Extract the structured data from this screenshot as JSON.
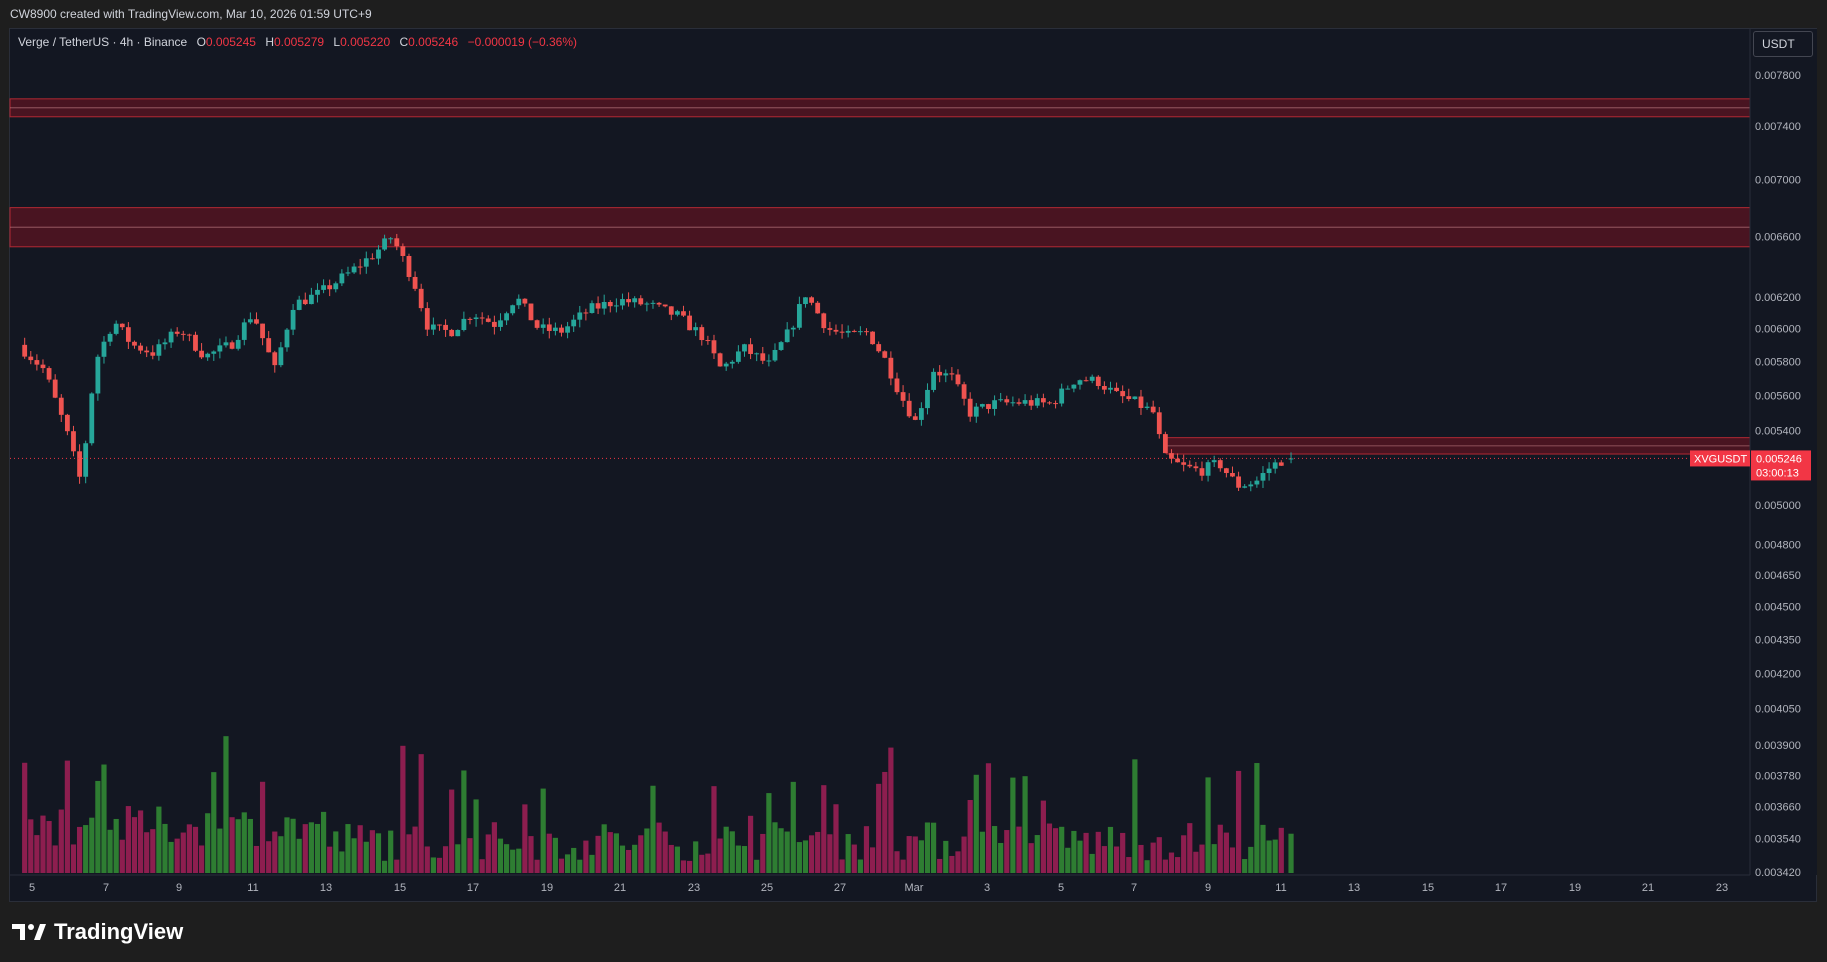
{
  "header": {
    "created_text": "CW8900 created with TradingView.com, Mar 10, 2026 01:59 UTC+9"
  },
  "legend": {
    "symbol": "Verge / TetherUS · 4h · Binance",
    "open_label": "O",
    "open_value": "0.005245",
    "high_label": "H",
    "high_value": "0.005279",
    "low_label": "L",
    "low_value": "0.005220",
    "close_label": "C",
    "close_value": "0.005246",
    "change": "−0.000019 (−0.36%)"
  },
  "currency_button": "USDT",
  "price_tag": {
    "symbol": "XVGUSDT",
    "price": "0.005246",
    "countdown": "03:00:13"
  },
  "brand": {
    "name": "TradingView"
  },
  "colors": {
    "background": "#131722",
    "up": "#26a69a",
    "down": "#ef5350",
    "volume_up": "#2e7d32",
    "volume_down": "#8d1e4f",
    "zone_fill": "#5c1421",
    "zone_border": "#b22833",
    "price_tag": "#f23645"
  },
  "chart_data": {
    "type": "candlestick",
    "timeframe": "4h",
    "y_axis": {
      "scale": "log",
      "range": [
        0.00342,
        0.0079
      ],
      "tick_labels": [
        "0.007800",
        "0.007400",
        "0.007000",
        "0.006600",
        "0.006200",
        "0.006000",
        "0.005800",
        "0.005600",
        "0.005400",
        "0.005000",
        "0.004800",
        "0.004650",
        "0.004500",
        "0.004350",
        "0.004200",
        "0.004050",
        "0.003900",
        "0.003780",
        "0.003660",
        "0.003540",
        "0.003420"
      ]
    },
    "x_axis": {
      "tick_labels": [
        "5",
        "7",
        "9",
        "11",
        "13",
        "15",
        "17",
        "19",
        "21",
        "23",
        "25",
        "27",
        "Mar",
        "3",
        "5",
        "7",
        "9",
        "11",
        "13",
        "15",
        "17",
        "19",
        "21",
        "23"
      ]
    },
    "zones": [
      {
        "low": 0.00747,
        "high": 0.00761
      },
      {
        "low": 0.00653,
        "high": 0.0068
      },
      {
        "low": 0.00527,
        "high": 0.00536
      }
    ],
    "current_price": 0.005246,
    "last_candle": {
      "open": 0.005245,
      "high": 0.005279,
      "low": 0.00522,
      "close": 0.005246
    },
    "close_path": [
      {
        "day": 4.8,
        "close": 0.0059
      },
      {
        "day": 5.5,
        "close": 0.00575
      },
      {
        "day": 6.1,
        "close": 0.0054
      },
      {
        "day": 6.5,
        "close": 0.00512
      },
      {
        "day": 6.9,
        "close": 0.0058
      },
      {
        "day": 7.4,
        "close": 0.00605
      },
      {
        "day": 7.9,
        "close": 0.0059
      },
      {
        "day": 8.5,
        "close": 0.00585
      },
      {
        "day": 9.2,
        "close": 0.006
      },
      {
        "day": 9.9,
        "close": 0.00583
      },
      {
        "day": 10.6,
        "close": 0.0059
      },
      {
        "day": 11.2,
        "close": 0.0061
      },
      {
        "day": 11.8,
        "close": 0.00575
      },
      {
        "day": 12.3,
        "close": 0.00615
      },
      {
        "day": 13.0,
        "close": 0.00622
      },
      {
        "day": 13.8,
        "close": 0.00635
      },
      {
        "day": 14.5,
        "close": 0.00648
      },
      {
        "day": 15.0,
        "close": 0.0066
      },
      {
        "day": 15.6,
        "close": 0.0063
      },
      {
        "day": 16.0,
        "close": 0.006
      },
      {
        "day": 16.6,
        "close": 0.00598
      },
      {
        "day": 17.2,
        "close": 0.0061
      },
      {
        "day": 17.8,
        "close": 0.00603
      },
      {
        "day": 18.4,
        "close": 0.0062
      },
      {
        "day": 19.0,
        "close": 0.006
      },
      {
        "day": 19.6,
        "close": 0.00598
      },
      {
        "day": 20.4,
        "close": 0.00612
      },
      {
        "day": 21.2,
        "close": 0.00618
      },
      {
        "day": 22.0,
        "close": 0.00615
      },
      {
        "day": 22.8,
        "close": 0.00608
      },
      {
        "day": 23.5,
        "close": 0.00595
      },
      {
        "day": 24.0,
        "close": 0.00575
      },
      {
        "day": 24.6,
        "close": 0.00588
      },
      {
        "day": 25.3,
        "close": 0.00578
      },
      {
        "day": 25.9,
        "close": 0.006
      },
      {
        "day": 26.3,
        "close": 0.00622
      },
      {
        "day": 26.9,
        "close": 0.006
      },
      {
        "day": 27.5,
        "close": 0.00595
      },
      {
        "day": 28.0,
        "close": 0.00598
      },
      {
        "day": 28.5,
        "close": 0.0058
      },
      {
        "day": 28.9,
        "close": 0.0056
      },
      {
        "day": 29.3,
        "close": 0.00545
      },
      {
        "day": 29.8,
        "close": 0.00575
      },
      {
        "day": 30.3,
        "close": 0.0057
      },
      {
        "day": 30.8,
        "close": 0.0055
      },
      {
        "day": 31.4,
        "close": 0.00555
      },
      {
        "day": 32.2,
        "close": 0.00556
      },
      {
        "day": 33.0,
        "close": 0.00555
      },
      {
        "day": 33.7,
        "close": 0.0057
      },
      {
        "day": 34.3,
        "close": 0.00568
      },
      {
        "day": 34.8,
        "close": 0.0056
      },
      {
        "day": 35.3,
        "close": 0.00556
      },
      {
        "day": 35.8,
        "close": 0.0055
      },
      {
        "day": 36.1,
        "close": 0.00525
      },
      {
        "day": 36.6,
        "close": 0.0052
      },
      {
        "day": 37.1,
        "close": 0.00518
      },
      {
        "day": 37.6,
        "close": 0.00522
      },
      {
        "day": 38.1,
        "close": 0.0051
      },
      {
        "day": 38.6,
        "close": 0.00512
      },
      {
        "day": 39.0,
        "close": 0.0052
      },
      {
        "day": 39.4,
        "close": 0.005246
      }
    ]
  }
}
